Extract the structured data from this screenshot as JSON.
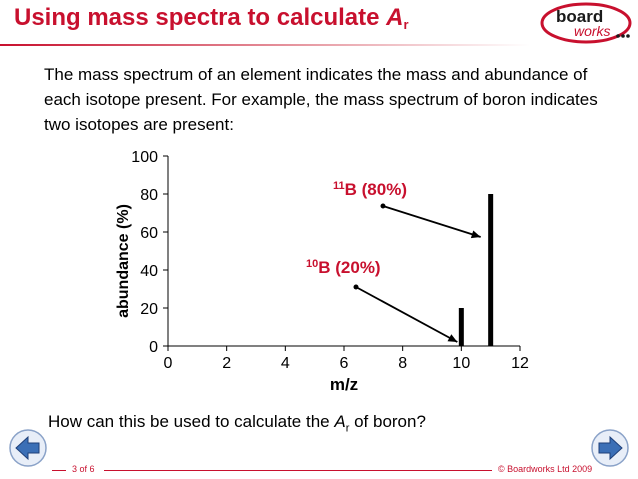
{
  "header": {
    "title_main": "Using mass spectra to calculate ",
    "title_symbol": "A",
    "title_sub": "r",
    "logo_line1": "board",
    "logo_line2": "works"
  },
  "intro_text": "The mass spectrum of an element indicates the mass and abundance of each isotope present. For example, the mass spectrum of boron indicates two isotopes are present:",
  "chart_data": {
    "type": "bar",
    "xlabel": "m/z",
    "ylabel": "abundance (%)",
    "xlim": [
      0,
      12
    ],
    "ylim": [
      0,
      100
    ],
    "x_ticks": [
      "0",
      "2",
      "4",
      "6",
      "8",
      "10",
      "12"
    ],
    "y_ticks": [
      "0",
      "20",
      "40",
      "60",
      "80",
      "100"
    ],
    "bars": [
      {
        "x": 10,
        "y": 20
      },
      {
        "x": 11,
        "y": 80
      }
    ],
    "annotations": [
      {
        "mass": "10",
        "symbol": "B",
        "percent": "(20%)",
        "points_to_x": 10
      },
      {
        "mass": "11",
        "symbol": "B",
        "percent": "(80%)",
        "points_to_x": 11
      }
    ],
    "colors": {
      "bar": "#000000",
      "label": "#c8102e"
    }
  },
  "question": {
    "before": "How can this be used to calculate the ",
    "symbol": "A",
    "sub": "r",
    "after": " of boron?"
  },
  "footer": {
    "page": "3 of 6",
    "copyright": "© Boardworks Ltd 2009"
  },
  "nav": {
    "prev_icon": "arrow-left-icon",
    "next_icon": "arrow-right-icon"
  },
  "colors": {
    "brand_red": "#c8102e",
    "nav_blue": "#3b6fb6"
  }
}
